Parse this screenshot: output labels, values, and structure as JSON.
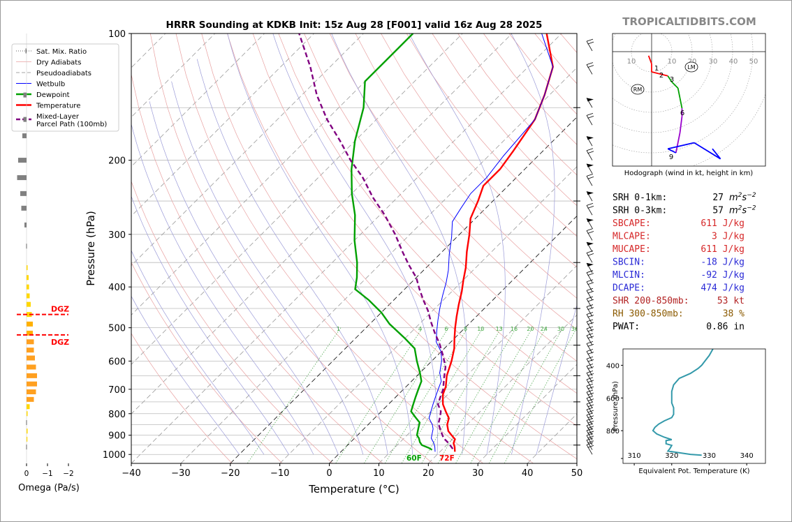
{
  "title": "HRRR Sounding at KDKB Init: 15z Aug 28 [F001] valid 16z Aug 28 2025",
  "brand": "TROPICALTIDBITS.COM",
  "chart_data": [
    {
      "type": "line",
      "name": "skew-t",
      "xlabel": "Temperature (°C)",
      "ylabel": "Pressure (hPa)",
      "xlim": [
        -40,
        50
      ],
      "ylim": [
        1050,
        100
      ],
      "x_ticks": [
        "−40",
        "−30",
        "−20",
        "−10",
        "0",
        "10",
        "20",
        "30",
        "40",
        "50"
      ],
      "y_ticks": [
        "100",
        "200",
        "300",
        "400",
        "500",
        "600",
        "700",
        "800",
        "900",
        "1000"
      ],
      "legend": [
        "Sat. Mix. Ratio",
        "Dry Adiabats",
        "Pseudoadiabats",
        "Wetbulb",
        "Dewpoint",
        "Temperature",
        "Mixed-Layer\nParcel Path (100mb)"
      ],
      "legend_position": "top-left",
      "mixing_ratio_labels": [
        "1",
        "4",
        "6",
        "8",
        "10",
        "13",
        "16",
        "20",
        "24",
        "30",
        "36"
      ],
      "surface_labels": {
        "dewpoint": "60F",
        "temperature": "72F"
      },
      "series": [
        {
          "name": "Temperature",
          "color": "#ff0000",
          "points": [
            [
              23,
              985
            ],
            [
              22,
              960
            ],
            [
              21,
              940
            ],
            [
              20.5,
              920
            ],
            [
              19,
              900
            ],
            [
              17.5,
              880
            ],
            [
              16,
              850
            ],
            [
              15,
              820
            ],
            [
              13,
              790
            ],
            [
              11,
              760
            ],
            [
              10,
              740
            ],
            [
              9,
              720
            ],
            [
              8,
              690
            ],
            [
              6,
              650
            ],
            [
              4,
              600
            ],
            [
              2,
              560
            ],
            [
              0,
              530
            ],
            [
              -2,
              500
            ],
            [
              -4,
              470
            ],
            [
              -6,
              440
            ],
            [
              -8,
              410
            ],
            [
              -10,
              385
            ],
            [
              -12,
              360
            ],
            [
              -15,
              330
            ],
            [
              -18,
              300
            ],
            [
              -21,
              275
            ],
            [
              -23,
              250
            ],
            [
              -25,
              230
            ],
            [
              -25,
              210
            ],
            [
              -26,
              190
            ],
            [
              -28,
              160
            ],
            [
              -31,
              140
            ],
            [
              -35,
              120
            ],
            [
              -43,
              100
            ]
          ]
        },
        {
          "name": "Dewpoint",
          "color": "#00a000",
          "points": [
            [
              18,
              975
            ],
            [
              17,
              965
            ],
            [
              15,
              950
            ],
            [
              14,
              935
            ],
            [
              13,
              915
            ],
            [
              12,
              900
            ],
            [
              11,
              870
            ],
            [
              10,
              840
            ],
            [
              8,
              815
            ],
            [
              6,
              790
            ],
            [
              5,
              760
            ],
            [
              4,
              730
            ],
            [
              3,
              700
            ],
            [
              2,
              670
            ],
            [
              0,
              640
            ],
            [
              -3,
              600
            ],
            [
              -6,
              560
            ],
            [
              -10,
              530
            ],
            [
              -16,
              490
            ],
            [
              -20,
              460
            ],
            [
              -25,
              430
            ],
            [
              -30,
              405
            ],
            [
              -32,
              380
            ],
            [
              -35,
              350
            ],
            [
              -40,
              310
            ],
            [
              -45,
              270
            ],
            [
              -50,
              240
            ],
            [
              -55,
              210
            ],
            [
              -60,
              180
            ],
            [
              -65,
              150
            ],
            [
              -70,
              130
            ],
            [
              -70,
              115
            ],
            [
              -70,
              100
            ]
          ]
        },
        {
          "name": "Wetbulb",
          "color": "#0000ff",
          "points": [
            [
              19,
              985
            ],
            [
              18,
              960
            ],
            [
              17,
              940
            ],
            [
              15.5,
              915
            ],
            [
              15,
              900
            ],
            [
              14,
              870
            ],
            [
              13,
              850
            ],
            [
              11,
              820
            ],
            [
              10,
              790
            ],
            [
              9,
              760
            ],
            [
              8,
              730
            ],
            [
              7,
              700
            ],
            [
              6,
              670
            ],
            [
              4,
              640
            ],
            [
              2,
              600
            ],
            [
              0,
              570
            ],
            [
              -3,
              540
            ],
            [
              -5,
              510
            ],
            [
              -7,
              480
            ],
            [
              -9,
              450
            ],
            [
              -11,
              420
            ],
            [
              -13,
              390
            ],
            [
              -15,
              365
            ],
            [
              -18,
              335
            ],
            [
              -21,
              305
            ],
            [
              -24,
              280
            ],
            [
              -25,
              260
            ],
            [
              -26,
              240
            ],
            [
              -26,
              220
            ],
            [
              -27,
              195
            ],
            [
              -28,
              160
            ],
            [
              -31,
              140
            ],
            [
              -35,
              120
            ],
            [
              -44,
              100
            ]
          ]
        },
        {
          "name": "Mixed-Layer Parcel Path (100mb)",
          "color": "#800080",
          "points": [
            [
              22,
              970
            ],
            [
              20,
              940
            ],
            [
              18,
              915
            ],
            [
              16,
              880
            ],
            [
              14,
              845
            ],
            [
              13,
              815
            ],
            [
              12,
              790
            ],
            [
              10,
              760
            ],
            [
              9,
              730
            ],
            [
              8,
              700
            ],
            [
              6,
              660
            ],
            [
              4,
              620
            ],
            [
              1,
              580
            ],
            [
              -2,
              545
            ],
            [
              -5,
              515
            ],
            [
              -8,
              485
            ],
            [
              -11,
              455
            ],
            [
              -14,
              430
            ],
            [
              -17,
              405
            ],
            [
              -20,
              380
            ],
            [
              -24,
              355
            ],
            [
              -28,
              330
            ],
            [
              -33,
              300
            ],
            [
              -39,
              270
            ],
            [
              -45,
              245
            ],
            [
              -51,
              220
            ],
            [
              -57,
              200
            ],
            [
              -63,
              180
            ],
            [
              -70,
              160
            ],
            [
              -77,
              140
            ],
            [
              -84,
              120
            ],
            [
              -93,
              100
            ]
          ]
        }
      ]
    },
    {
      "type": "bar",
      "name": "omega",
      "xlabel": "Omega (Pa/s)",
      "x_ticks": [
        "0",
        "−1",
        "−2"
      ],
      "dgz_label": "DGZ",
      "dgz_levels": [
        465,
        520
      ],
      "values": [
        {
          "p": 110,
          "w": -0.05,
          "c": "#808080"
        },
        {
          "p": 140,
          "w": -0.15,
          "c": "#808080"
        },
        {
          "p": 160,
          "w": -0.15,
          "c": "#808080"
        },
        {
          "p": 175,
          "w": -0.2,
          "c": "#808080"
        },
        {
          "p": 200,
          "w": -0.4,
          "c": "#808080"
        },
        {
          "p": 220,
          "w": -0.45,
          "c": "#808080"
        },
        {
          "p": 240,
          "w": -0.3,
          "c": "#808080"
        },
        {
          "p": 260,
          "w": -0.25,
          "c": "#808080"
        },
        {
          "p": 285,
          "w": -0.1,
          "c": "#808080"
        },
        {
          "p": 320,
          "w": -0.02,
          "c": "#808080"
        },
        {
          "p": 360,
          "w": 0.05,
          "c": "#ffd700"
        },
        {
          "p": 380,
          "w": 0.1,
          "c": "#ffd700"
        },
        {
          "p": 400,
          "w": 0.12,
          "c": "#ffd700"
        },
        {
          "p": 420,
          "w": 0.15,
          "c": "#ffd700"
        },
        {
          "p": 440,
          "w": 0.2,
          "c": "#ffd700"
        },
        {
          "p": 465,
          "w": 0.25,
          "c": "#ffd700"
        },
        {
          "p": 490,
          "w": 0.3,
          "c": "#ffb000"
        },
        {
          "p": 515,
          "w": 0.3,
          "c": "#ffb000"
        },
        {
          "p": 540,
          "w": 0.35,
          "c": "#ffa020"
        },
        {
          "p": 565,
          "w": 0.35,
          "c": "#ffa020"
        },
        {
          "p": 590,
          "w": 0.4,
          "c": "#ffa020"
        },
        {
          "p": 620,
          "w": 0.45,
          "c": "#ffa020"
        },
        {
          "p": 650,
          "w": 0.5,
          "c": "#ffa020"
        },
        {
          "p": 680,
          "w": 0.5,
          "c": "#ffa020"
        },
        {
          "p": 710,
          "w": 0.45,
          "c": "#ffa020"
        },
        {
          "p": 740,
          "w": 0.35,
          "c": "#ffa020"
        },
        {
          "p": 770,
          "w": 0.15,
          "c": "#ffd700"
        },
        {
          "p": 800,
          "w": 0.05,
          "c": "#ffd700"
        },
        {
          "p": 840,
          "w": -0.02,
          "c": "#808080"
        },
        {
          "p": 880,
          "w": 0.05,
          "c": "#ffd700"
        },
        {
          "p": 920,
          "w": 0.03,
          "c": "#ffd700"
        },
        {
          "p": 960,
          "w": -0.02,
          "c": "#808080"
        }
      ]
    },
    {
      "type": "line",
      "name": "hodograph",
      "caption": "Hodograph (wind in kt, height in km)",
      "ring_labels": [
        "10",
        "10",
        "20",
        "30",
        "40",
        "50"
      ],
      "markers": [
        "RM",
        "LM"
      ],
      "height_labels": [
        "1",
        "2",
        "3",
        "6",
        "9"
      ]
    },
    {
      "type": "line",
      "name": "theta-e",
      "xlabel": "Equivalent Pot. Temperature (K)",
      "ylabel": "Pressure (hPa)",
      "x_ticks": [
        "310",
        "320",
        "330",
        "340"
      ],
      "y_ticks": [
        "400",
        "600",
        "800"
      ],
      "xlim": [
        307,
        345
      ],
      "ylim": [
        1000,
        300
      ],
      "series": [
        {
          "name": "theta-e",
          "color": "#3399aa",
          "points": [
            [
              328,
              950
            ],
            [
              325,
              945
            ],
            [
              322,
              935
            ],
            [
              319,
              925
            ],
            [
              319.5,
              910
            ],
            [
              320,
              890
            ],
            [
              318.5,
              880
            ],
            [
              318.5,
              860
            ],
            [
              320,
              855
            ],
            [
              318,
              840
            ],
            [
              316,
              820
            ],
            [
              315,
              800
            ],
            [
              315.5,
              780
            ],
            [
              316.5,
              760
            ],
            [
              318,
              740
            ],
            [
              320,
              720
            ],
            [
              320.5,
              700
            ],
            [
              320.5,
              660
            ],
            [
              320,
              630
            ],
            [
              320,
              600
            ],
            [
              320,
              560
            ],
            [
              320.5,
              520
            ],
            [
              322,
              480
            ],
            [
              325,
              450
            ],
            [
              327,
              420
            ],
            [
              328,
              400
            ],
            [
              329,
              370
            ],
            [
              330,
              340
            ],
            [
              331,
              300
            ]
          ]
        }
      ]
    }
  ],
  "hodograph_points": [
    {
      "u": -1.5,
      "v": -2,
      "c": "#ff0000"
    },
    {
      "u": 0,
      "v": -6,
      "c": "#ff0000"
    },
    {
      "u": 0,
      "v": -10,
      "c": "#ff0000"
    },
    {
      "u": 4,
      "v": -11,
      "c": "#ff0000"
    },
    {
      "u": 8,
      "v": -12,
      "c": "#ff0000"
    },
    {
      "u": 10,
      "v": -15,
      "c": "#00a000"
    },
    {
      "u": 13,
      "v": -18,
      "c": "#00a000"
    },
    {
      "u": 14,
      "v": -23,
      "c": "#00a000"
    },
    {
      "u": 15,
      "v": -28,
      "c": "#00a000"
    },
    {
      "u": 15,
      "v": -32,
      "c": "#9900cc"
    },
    {
      "u": 14,
      "v": -40,
      "c": "#9900cc"
    },
    {
      "u": 12,
      "v": -50,
      "c": "#9900cc"
    },
    {
      "u": 8,
      "v": -48,
      "c": "#0000ff"
    },
    {
      "u": 21,
      "v": -45,
      "c": "#0000ff"
    },
    {
      "u": 34,
      "v": -53,
      "c": "#0000ff"
    },
    {
      "u": 30,
      "v": -48,
      "c": "#0000ff"
    }
  ],
  "stats": [
    {
      "label": "SRH 0-1km:",
      "value": "27",
      "unit": "m2s-2",
      "color": "#000000"
    },
    {
      "label": "SRH 0-3km:",
      "value": "57",
      "unit": "m2s-2",
      "color": "#000000"
    },
    {
      "label": "SBCAPE:",
      "value": "611 J/kg",
      "color": "#d62728"
    },
    {
      "label": "MLCAPE:",
      "value": "3 J/kg",
      "color": "#d62728"
    },
    {
      "label": "MUCAPE:",
      "value": "611 J/kg",
      "color": "#d62728"
    },
    {
      "label": "SBCIN:",
      "value": "-18 J/kg",
      "color": "#2a2ad6"
    },
    {
      "label": "MLCIN:",
      "value": "-92 J/kg",
      "color": "#2a2ad6"
    },
    {
      "label": "DCAPE:",
      "value": "474 J/kg",
      "color": "#2a2ad6"
    },
    {
      "label": "SHR 200-850mb:",
      "value": "53 kt",
      "color": "#b22222"
    },
    {
      "label": "RH 300-850mb:",
      "value": "38 %",
      "color": "#8b5a00"
    },
    {
      "label": "PWAT:",
      "value": "0.86 in",
      "color": "#000000"
    }
  ]
}
